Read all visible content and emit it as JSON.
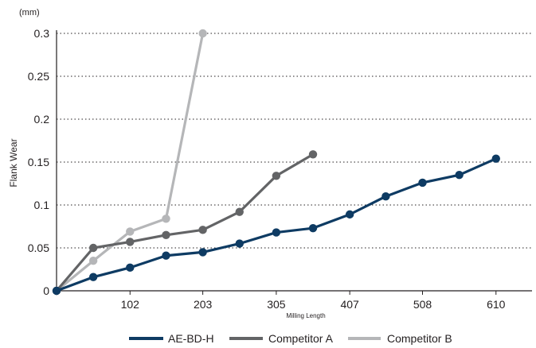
{
  "chart_data": {
    "type": "line",
    "title": "",
    "unit_label": "(mm)",
    "xlabel": "Milling Length",
    "ylabel": "Flank Wear",
    "xlim": [
      0,
      660
    ],
    "ylim": [
      0,
      0.3
    ],
    "x_ticks": [
      102,
      203,
      305,
      407,
      508,
      610
    ],
    "x_tick_labels": [
      "102",
      "203",
      "305",
      "407",
      "508",
      "610"
    ],
    "y_ticks": [
      0,
      0.05,
      0.1,
      0.15,
      0.2,
      0.25,
      0.3
    ],
    "y_tick_labels": [
      "0",
      "0.05",
      "0.1",
      "0.15",
      "0.2",
      "0.25",
      "0.3"
    ],
    "grid": "horizontal dotted",
    "legend_position": "bottom",
    "series": [
      {
        "name": "AE-BD-H",
        "color": "#0e3b63",
        "x": [
          0,
          51,
          102,
          152,
          203,
          254,
          305,
          356,
          407,
          457,
          508,
          559,
          610
        ],
        "y": [
          0,
          0.016,
          0.027,
          0.041,
          0.045,
          0.055,
          0.068,
          0.073,
          0.089,
          0.11,
          0.126,
          0.135,
          0.154
        ]
      },
      {
        "name": "Competitor A",
        "color": "#636466",
        "x": [
          0,
          51,
          102,
          152,
          203,
          254,
          305,
          356
        ],
        "y": [
          0,
          0.05,
          0.057,
          0.065,
          0.071,
          0.092,
          0.134,
          0.159
        ]
      },
      {
        "name": "Competitor B",
        "color": "#b5b6b8",
        "x": [
          0,
          51,
          102,
          152,
          203
        ],
        "y": [
          0,
          0.035,
          0.069,
          0.084,
          0.3
        ]
      }
    ]
  }
}
